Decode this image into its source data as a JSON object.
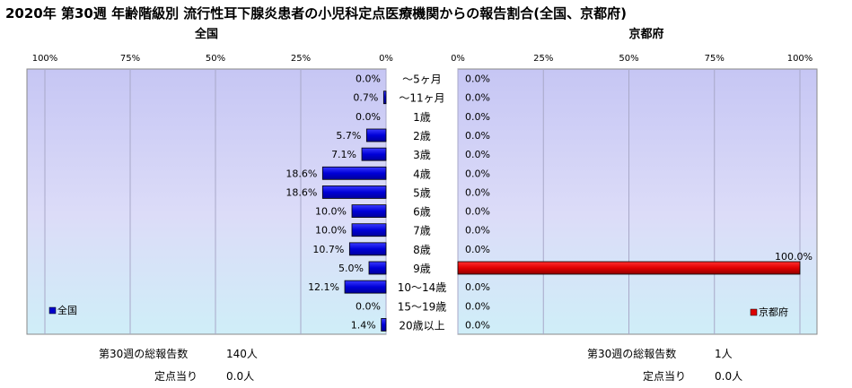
{
  "title": "2020年 第30週 年齢階級別 流行性耳下腺炎患者の小児科定点医療機関からの報告割合(全国、京都府)",
  "chart_data": {
    "type": "bar",
    "orientation": "horizontal-back-to-back",
    "categories": [
      "～5ヶ月",
      "～11ヶ月",
      "1歳",
      "2歳",
      "3歳",
      "4歳",
      "5歳",
      "6歳",
      "7歳",
      "8歳",
      "9歳",
      "10～14歳",
      "15～19歳",
      "20歳以上"
    ],
    "xlim": [
      0,
      100
    ],
    "grid": true,
    "panels": [
      {
        "title": "全国",
        "direction": "reversed",
        "tick_labels": [
          "100%",
          "75%",
          "50%",
          "25%",
          "0%"
        ],
        "series": [
          {
            "name": "全国",
            "color": "#0000cc",
            "values": [
              0.0,
              0.7,
              0.0,
              5.7,
              7.1,
              18.6,
              18.6,
              10.0,
              10.0,
              10.7,
              5.0,
              12.1,
              0.0,
              1.4
            ],
            "labels": [
              "0.0%",
              "0.7%",
              "0.0%",
              "5.7%",
              "7.1%",
              "18.6%",
              "18.6%",
              "10.0%",
              "10.0%",
              "10.7%",
              "5.0%",
              "12.1%",
              "0.0%",
              "1.4%"
            ]
          }
        ],
        "legend_position": "bottom-left",
        "summary": {
          "total_label": "第30週の総報告数",
          "total_value": "140人",
          "per_label": "定点当り",
          "per_value": "0.0人"
        }
      },
      {
        "title": "京都府",
        "direction": "normal",
        "tick_labels": [
          "0%",
          "25%",
          "50%",
          "75%",
          "100%"
        ],
        "series": [
          {
            "name": "京都府",
            "color": "#dd0000",
            "values": [
              0.0,
              0.0,
              0.0,
              0.0,
              0.0,
              0.0,
              0.0,
              0.0,
              0.0,
              0.0,
              100.0,
              0.0,
              0.0,
              0.0
            ],
            "labels": [
              "0.0%",
              "0.0%",
              "0.0%",
              "0.0%",
              "0.0%",
              "0.0%",
              "0.0%",
              "0.0%",
              "0.0%",
              "0.0%",
              "100.0%",
              "0.0%",
              "0.0%",
              "0.0%"
            ]
          }
        ],
        "legend_position": "bottom-right",
        "summary": {
          "total_label": "第30週の総報告数",
          "total_value": "1人",
          "per_label": "定点当り",
          "per_value": "0.0人"
        }
      }
    ]
  }
}
